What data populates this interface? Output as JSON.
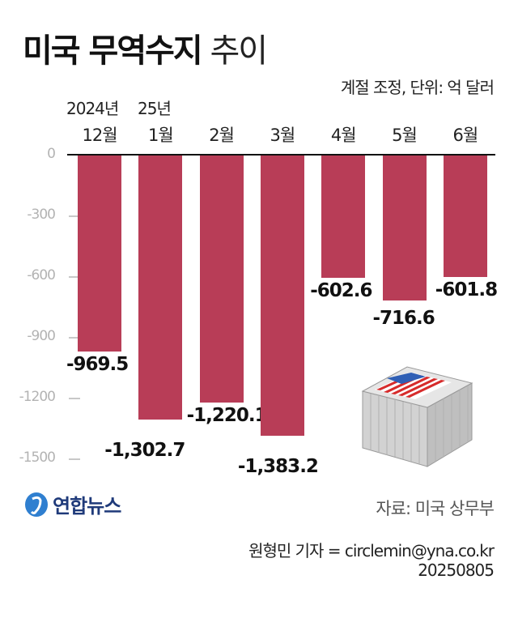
{
  "title": {
    "bold": "미국 무역수지",
    "light": "추이"
  },
  "unit_note": "계절 조정, 단위: 억 달러",
  "year_labels": [
    {
      "text": "2024년",
      "x": 82
    },
    {
      "text": "25년",
      "x": 170
    }
  ],
  "months": [
    "12월",
    "1월",
    "2월",
    "3월",
    "4월",
    "5월",
    "6월"
  ],
  "y_ticks": [
    {
      "label": "0",
      "value": 0
    },
    {
      "label": "-300",
      "value": -300
    },
    {
      "label": "-600",
      "value": -600
    },
    {
      "label": "-900",
      "value": -900
    },
    {
      "label": "-1200",
      "value": -1200
    },
    {
      "label": "-1500",
      "value": -1500
    }
  ],
  "value_labels": [
    "-969.5",
    "-1,302.7",
    "-1,220.1",
    "-1,383.2",
    "-602.6",
    "-716.6",
    "-601.8"
  ],
  "colors": {
    "bar": "#b83d57",
    "axis_tick": "#b3b3b3",
    "logo": "#1f3a7a"
  },
  "illustration": "shipping-container-with-us-flag",
  "logo": {
    "text": "연합뉴스"
  },
  "source": "자료: 미국 상무부",
  "credit": {
    "reporter": "원형민 기자 = circlemin@yna.co.kr",
    "date": "20250805"
  },
  "chart_data": {
    "type": "bar",
    "title": "미국 무역수지 추이",
    "subtitle": "계절 조정, 단위: 억 달러",
    "categories": [
      "2024년 12월",
      "25년 1월",
      "2월",
      "3월",
      "4월",
      "5월",
      "6월"
    ],
    "values": [
      -969.5,
      -1302.7,
      -1220.1,
      -1383.2,
      -602.6,
      -716.6,
      -601.8
    ],
    "xlabel": "",
    "ylabel": "억 달러",
    "ylim": [
      -1500,
      0
    ],
    "yticks": [
      0,
      -300,
      -600,
      -900,
      -1200,
      -1500
    ],
    "grid": false,
    "legend": null,
    "source": "자료: 미국 상무부"
  }
}
